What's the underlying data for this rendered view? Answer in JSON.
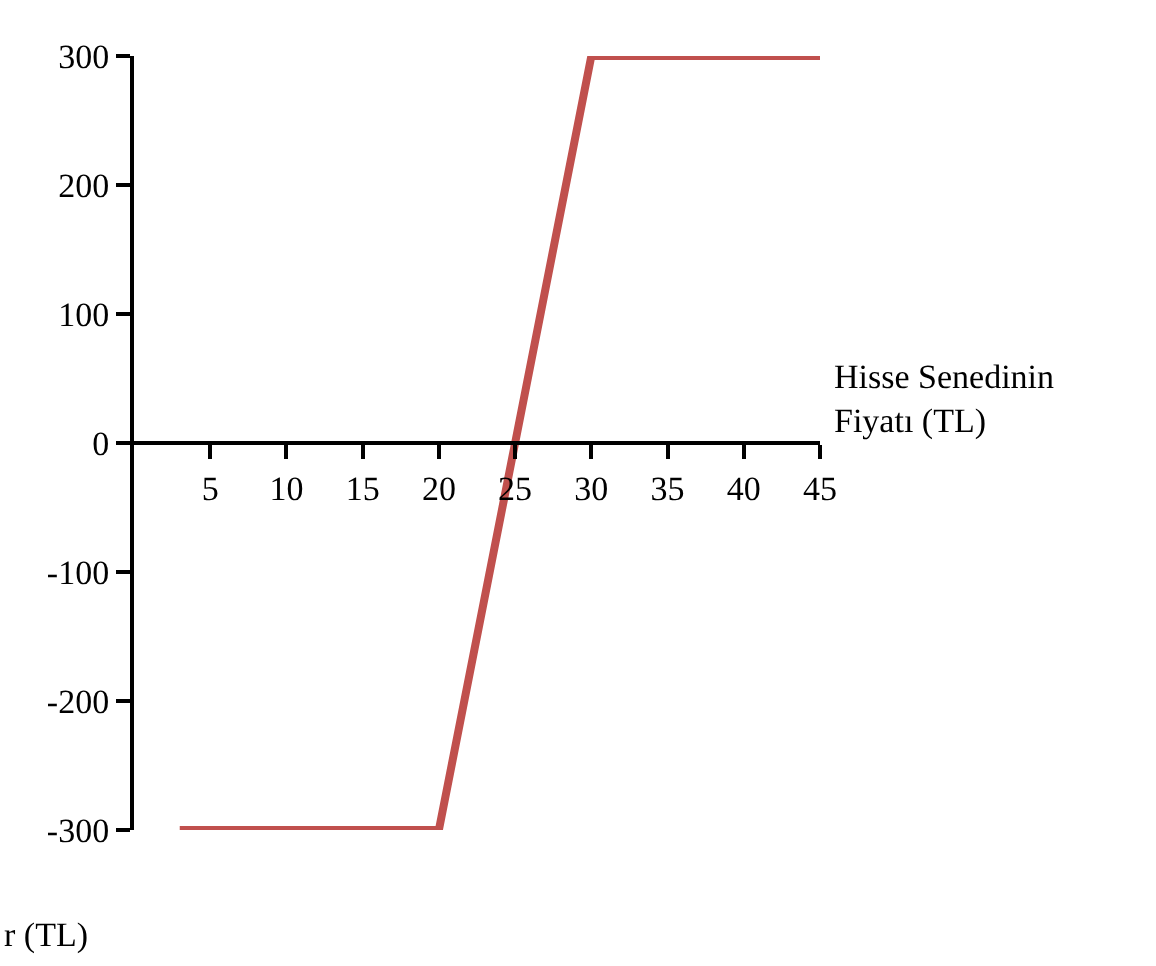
{
  "chart_data": {
    "type": "line",
    "xlabel": "Hisse Senedinin Fiyatı (TL)",
    "ylabel": "r (TL)",
    "x": [
      3,
      20,
      30,
      45
    ],
    "series": [
      {
        "color": "#c0504d",
        "values": [
          -300,
          -300,
          300,
          300
        ]
      }
    ],
    "xlim": [
      0,
      45
    ],
    "xticks": [
      5,
      10,
      15,
      20,
      25,
      30,
      35,
      40,
      45
    ],
    "ylim": [
      -300,
      300
    ],
    "yticks": [
      -300,
      -200,
      -100,
      0,
      100,
      200,
      300
    ],
    "marker": "none",
    "line_style": "solid"
  }
}
